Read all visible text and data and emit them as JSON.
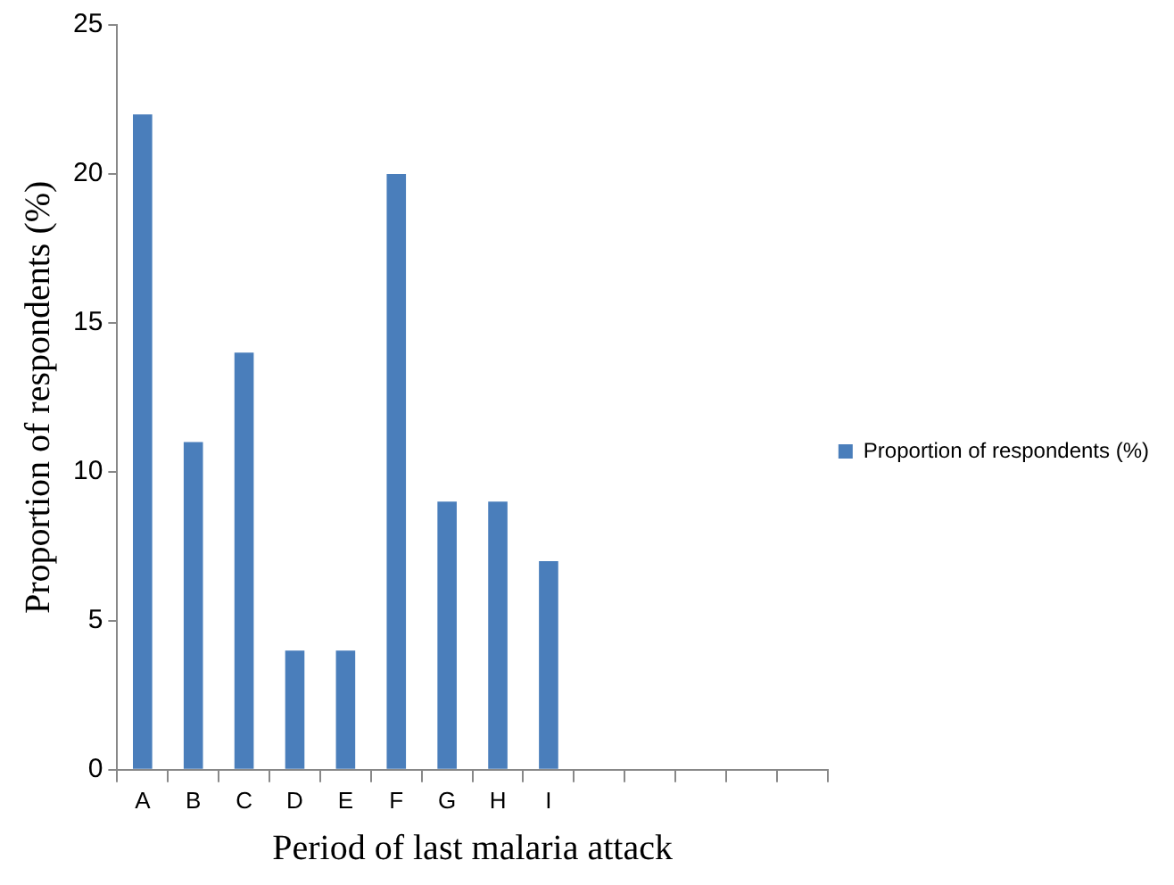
{
  "chart_data": {
    "type": "bar",
    "xlabel": "Period of last malaria attack",
    "ylabel": "Proportion of respondents (%)",
    "categories": [
      "A",
      "B",
      "C",
      "D",
      "E",
      "F",
      "G",
      "H",
      "I",
      null,
      null,
      null,
      null,
      null
    ],
    "series": [
      {
        "name": "Proportion of respondents (%)",
        "color": "#4a7ebb",
        "values": [
          22,
          11,
          14,
          4,
          4,
          20,
          9,
          9,
          7,
          null,
          null,
          null,
          null,
          null
        ]
      }
    ],
    "ylim": [
      0,
      25
    ],
    "yticks": [
      0,
      5,
      10,
      15,
      20,
      25
    ],
    "grid": false,
    "legend": "right"
  }
}
